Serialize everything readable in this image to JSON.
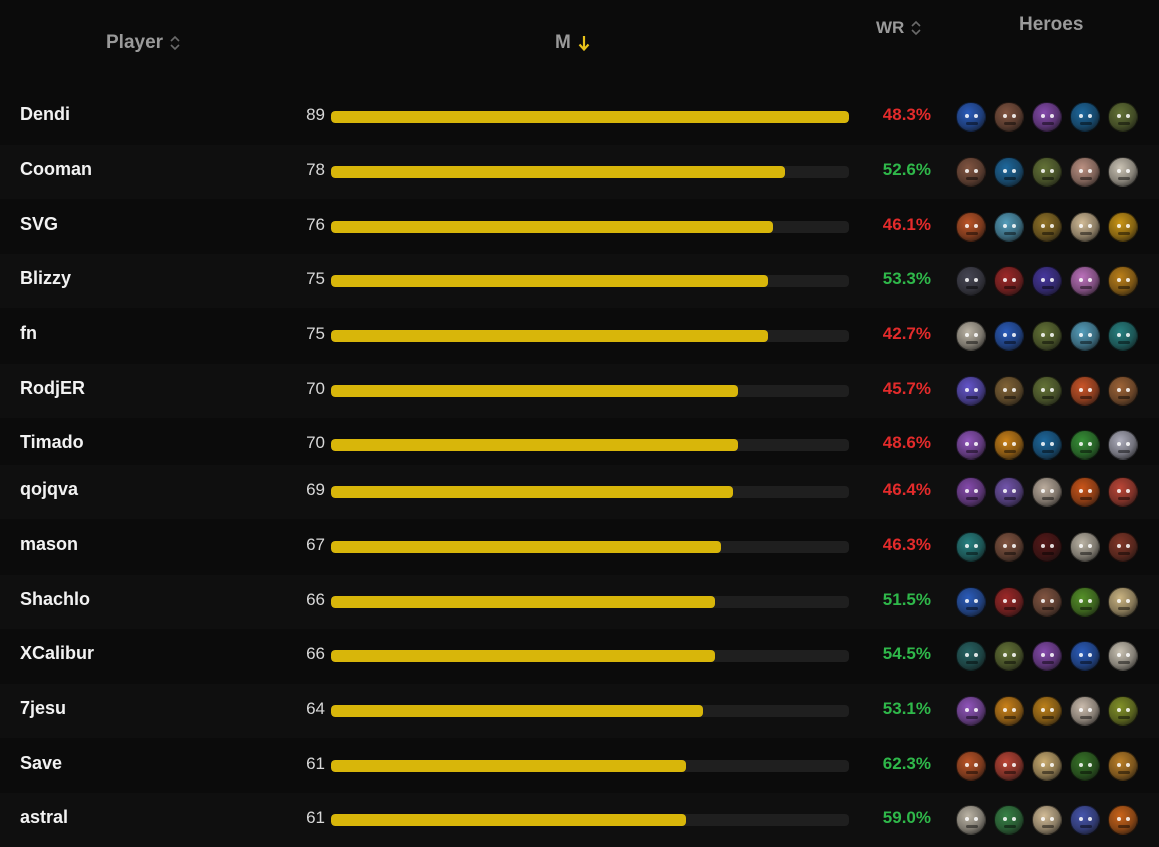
{
  "header": {
    "player": "Player",
    "m": "M",
    "wr": "WR",
    "heroes": "Heroes"
  },
  "bar_max": 89,
  "colors": {
    "bar_fill": "#d8b60a",
    "bar_track": "#1f1f1f",
    "wr_negative": "#e32b2b",
    "wr_positive": "#2fb84a",
    "sort_active": "#e8c21a"
  },
  "rows": [
    {
      "player": "Dendi",
      "m": "89",
      "wr": "48.3%",
      "heroes": [
        {
          "icon": "hero-icon",
          "color": "#2d62c8"
        },
        {
          "icon": "hero-icon",
          "color": "#8a5a45"
        },
        {
          "icon": "hero-icon",
          "color": "#8e4fb8"
        },
        {
          "icon": "hero-icon",
          "color": "#1f6fa8"
        },
        {
          "icon": "hero-icon",
          "color": "#6a7a3a"
        }
      ]
    },
    {
      "player": "Cooman",
      "m": "78",
      "wr": "52.6%",
      "heroes": [
        {
          "icon": "hero-icon",
          "color": "#8a5a45"
        },
        {
          "icon": "hero-icon",
          "color": "#1f6fa8"
        },
        {
          "icon": "hero-icon",
          "color": "#6a7a3a"
        },
        {
          "icon": "hero-icon",
          "color": "#c89a8a"
        },
        {
          "icon": "hero-icon",
          "color": "#d8d0c0"
        }
      ]
    },
    {
      "player": "SVG",
      "m": "76",
      "wr": "46.1%",
      "heroes": [
        {
          "icon": "hero-icon",
          "color": "#c85a2a"
        },
        {
          "icon": "hero-icon",
          "color": "#5aa8c8"
        },
        {
          "icon": "hero-icon",
          "color": "#9a7a2a"
        },
        {
          "icon": "hero-icon",
          "color": "#e0c8a0"
        },
        {
          "icon": "hero-icon",
          "color": "#d8a018"
        }
      ]
    },
    {
      "player": "Blizzy",
      "m": "75",
      "wr": "53.3%",
      "heroes": [
        {
          "icon": "hero-icon",
          "color": "#4a4a58"
        },
        {
          "icon": "hero-icon",
          "color": "#a82a2a"
        },
        {
          "icon": "hero-icon",
          "color": "#4a3aa8"
        },
        {
          "icon": "hero-icon",
          "color": "#c878c8"
        },
        {
          "icon": "hero-icon",
          "color": "#c8881a"
        }
      ]
    },
    {
      "player": "fn",
      "m": "75",
      "wr": "42.7%",
      "heroes": [
        {
          "icon": "hero-icon",
          "color": "#c8c0b0"
        },
        {
          "icon": "hero-icon",
          "color": "#2d62c8"
        },
        {
          "icon": "hero-icon",
          "color": "#6a7a3a"
        },
        {
          "icon": "hero-icon",
          "color": "#5aa8c8"
        },
        {
          "icon": "hero-icon",
          "color": "#2a8a8a"
        }
      ]
    },
    {
      "player": "RodjER",
      "m": "70",
      "wr": "45.7%",
      "heroes": [
        {
          "icon": "hero-icon",
          "color": "#6a5ad8"
        },
        {
          "icon": "hero-icon",
          "color": "#8a6a3a"
        },
        {
          "icon": "hero-icon",
          "color": "#6a7a3a"
        },
        {
          "icon": "hero-icon",
          "color": "#d85a2a"
        },
        {
          "icon": "hero-icon",
          "color": "#a86a3a"
        }
      ]
    },
    {
      "player": "Timado",
      "m": "70",
      "wr": "48.6%",
      "heroes": [
        {
          "icon": "hero-icon",
          "color": "#9a5ac8"
        },
        {
          "icon": "hero-icon",
          "color": "#d88a1a"
        },
        {
          "icon": "hero-icon",
          "color": "#1f6fa8"
        },
        {
          "icon": "hero-icon",
          "color": "#3a9a3a"
        },
        {
          "icon": "hero-icon",
          "color": "#b8b8c8"
        }
      ]
    },
    {
      "player": "qojqva",
      "m": "69",
      "wr": "46.4%",
      "heroes": [
        {
          "icon": "hero-icon",
          "color": "#8e4fb8"
        },
        {
          "icon": "hero-icon",
          "color": "#7a5ab8"
        },
        {
          "icon": "hero-icon",
          "color": "#c8b8a8"
        },
        {
          "icon": "hero-icon",
          "color": "#d85a1a"
        },
        {
          "icon": "hero-icon",
          "color": "#c84a3a"
        }
      ]
    },
    {
      "player": "mason",
      "m": "67",
      "wr": "46.3%",
      "heroes": [
        {
          "icon": "hero-icon",
          "color": "#2a8a8a"
        },
        {
          "icon": "hero-icon",
          "color": "#8a5a45"
        },
        {
          "icon": "hero-icon",
          "color": "#5a1a1a"
        },
        {
          "icon": "hero-icon",
          "color": "#c8c0b0"
        },
        {
          "icon": "hero-icon",
          "color": "#8a3a2a"
        }
      ]
    },
    {
      "player": "Shachlo",
      "m": "66",
      "wr": "51.5%",
      "heroes": [
        {
          "icon": "hero-icon",
          "color": "#2d62c8"
        },
        {
          "icon": "hero-icon",
          "color": "#a82a2a"
        },
        {
          "icon": "hero-icon",
          "color": "#8a5a45"
        },
        {
          "icon": "hero-icon",
          "color": "#5a9a2a"
        },
        {
          "icon": "hero-icon",
          "color": "#d8c08a"
        }
      ]
    },
    {
      "player": "XCalibur",
      "m": "66",
      "wr": "54.5%",
      "heroes": [
        {
          "icon": "hero-icon",
          "color": "#2a6a6a"
        },
        {
          "icon": "hero-icon",
          "color": "#6a7a3a"
        },
        {
          "icon": "hero-icon",
          "color": "#8e4fb8"
        },
        {
          "icon": "hero-icon",
          "color": "#2d62c8"
        },
        {
          "icon": "hero-icon",
          "color": "#d8d0c0"
        }
      ]
    },
    {
      "player": "7jesu",
      "m": "64",
      "wr": "53.1%",
      "heroes": [
        {
          "icon": "hero-icon",
          "color": "#9a5ac8"
        },
        {
          "icon": "hero-icon",
          "color": "#d88a1a"
        },
        {
          "icon": "hero-icon",
          "color": "#c8881a"
        },
        {
          "icon": "hero-icon",
          "color": "#d8c8b8"
        },
        {
          "icon": "hero-icon",
          "color": "#8a9a2a"
        }
      ]
    },
    {
      "player": "Save",
      "m": "61",
      "wr": "62.3%",
      "heroes": [
        {
          "icon": "hero-icon",
          "color": "#c85a2a"
        },
        {
          "icon": "hero-icon",
          "color": "#c84a3a"
        },
        {
          "icon": "hero-icon",
          "color": "#d8b878"
        },
        {
          "icon": "hero-icon",
          "color": "#3a7a2a"
        },
        {
          "icon": "hero-icon",
          "color": "#c8882a"
        }
      ]
    },
    {
      "player": "astral",
      "m": "61",
      "wr": "59.0%",
      "heroes": [
        {
          "icon": "hero-icon",
          "color": "#c8c0b0"
        },
        {
          "icon": "hero-icon",
          "color": "#3a8a4a"
        },
        {
          "icon": "hero-icon",
          "color": "#e0c8a0"
        },
        {
          "icon": "hero-icon",
          "color": "#4a5ab8"
        },
        {
          "icon": "hero-icon",
          "color": "#d86a1a"
        }
      ]
    }
  ]
}
